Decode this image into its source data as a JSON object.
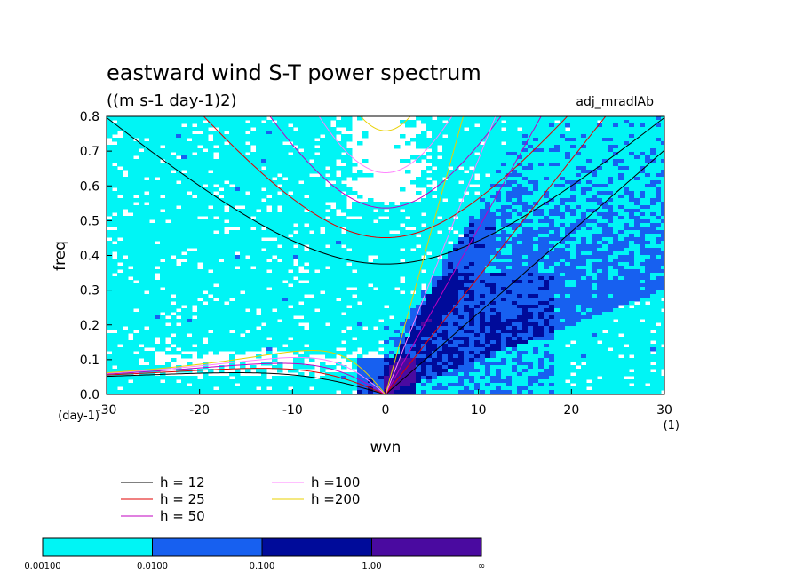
{
  "chart_data": {
    "type": "heatmap",
    "title": "eastward wind S-T power spectrum",
    "subtitle": "((m s-1 day-1)2)",
    "tag": "adj_mradlAb",
    "xlabel": "wvn",
    "ylabel": "freq",
    "x_unit": "(1)",
    "y_unit": "(day-1)",
    "xlim": [
      -30,
      30
    ],
    "ylim": [
      0.0,
      0.8
    ],
    "x_ticks": [
      "-30",
      "-20",
      "-10",
      "0",
      "10",
      "20",
      "30"
    ],
    "y_ticks": [
      "0.0",
      "0.1",
      "0.2",
      "0.3",
      "0.4",
      "0.5",
      "0.6",
      "0.7",
      "0.8"
    ],
    "contour_levels": [
      "0.00100",
      "0.0100",
      "0.100",
      "1.00",
      "∞"
    ],
    "level_colors": [
      "#00f5f5",
      "#1760f0",
      "#000b9a",
      "#4a0aa0"
    ],
    "dispersion_curves": [
      {
        "name": "h = 12",
        "h": 12,
        "color": "#000000"
      },
      {
        "name": "h = 25",
        "h": 25,
        "color": "#e00000"
      },
      {
        "name": "h = 50",
        "h": 50,
        "color": "#c000c0"
      },
      {
        "name": "h =100",
        "h": 100,
        "color": "#ff80ff"
      },
      {
        "name": "h =200",
        "h": 200,
        "color": "#e8d000"
      }
    ],
    "grid": false,
    "legend_position": "bottom-left"
  }
}
